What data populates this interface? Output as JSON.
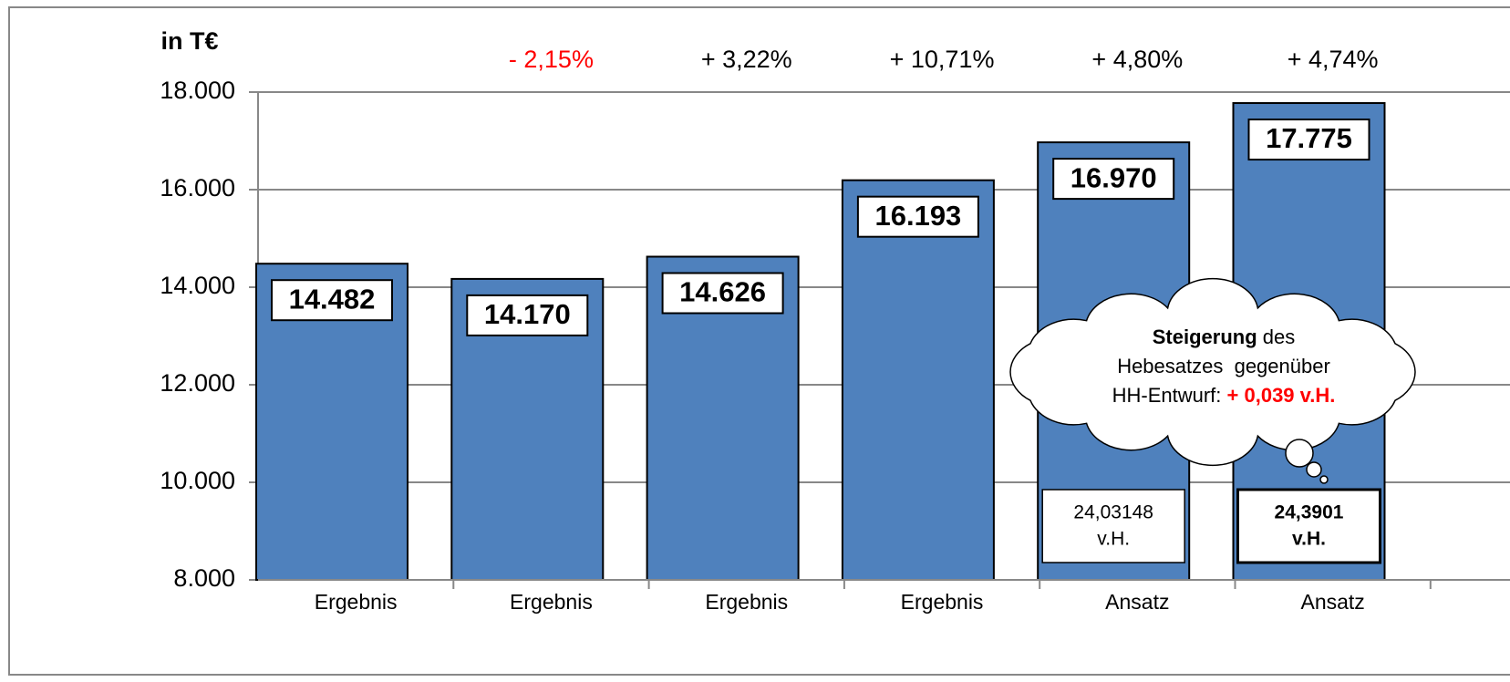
{
  "chart_data": {
    "type": "bar",
    "y_axis_label": "in T€",
    "categories": [
      "Ergebnis",
      "Ergebnis",
      "Ergebnis",
      "Ergebnis",
      "Ansatz",
      "Ansatz"
    ],
    "values": [
      14482,
      14170,
      14626,
      16193,
      16970,
      17775
    ],
    "value_labels": [
      "14.482",
      "14.170",
      "14.626",
      "16.193",
      "16.970",
      "17.775"
    ],
    "color": "#4f81bd",
    "ylim": [
      8000,
      18000
    ],
    "yticks": [
      {
        "value": 8000,
        "label": "8.000"
      },
      {
        "value": 10000,
        "label": "10.000"
      },
      {
        "value": 12000,
        "label": "12.000"
      },
      {
        "value": 14000,
        "label": "14.000"
      },
      {
        "value": 16000,
        "label": "16.000"
      },
      {
        "value": 18000,
        "label": "18.000"
      }
    ],
    "grid": true,
    "changes": [
      {
        "label": "- 2,15%",
        "color": "#ff0000"
      },
      {
        "label": "+ 3,22%",
        "color": "#000000"
      },
      {
        "label": "+ 10,71%",
        "color": "#000000"
      },
      {
        "label": "+ 4,80%",
        "color": "#000000"
      },
      {
        "label": "+ 4,74%",
        "color": "#000000"
      }
    ],
    "rate_boxes": [
      {
        "lines": [
          "24,03148",
          "v.H."
        ],
        "bold": false
      },
      {
        "lines": [
          "24,3901",
          "v.H."
        ],
        "bold": true
      }
    ],
    "callout": {
      "lines": [
        [
          {
            "text": "Steigerung",
            "bold": true
          },
          {
            "text": " des"
          }
        ],
        [
          {
            "text": "Hebesatzes  gegenüber"
          }
        ],
        [
          {
            "text": "HH-Entwurf: "
          },
          {
            "text": "+ 0,039 v.H.",
            "bold": true,
            "color": "#ff0000"
          }
        ]
      ]
    }
  }
}
